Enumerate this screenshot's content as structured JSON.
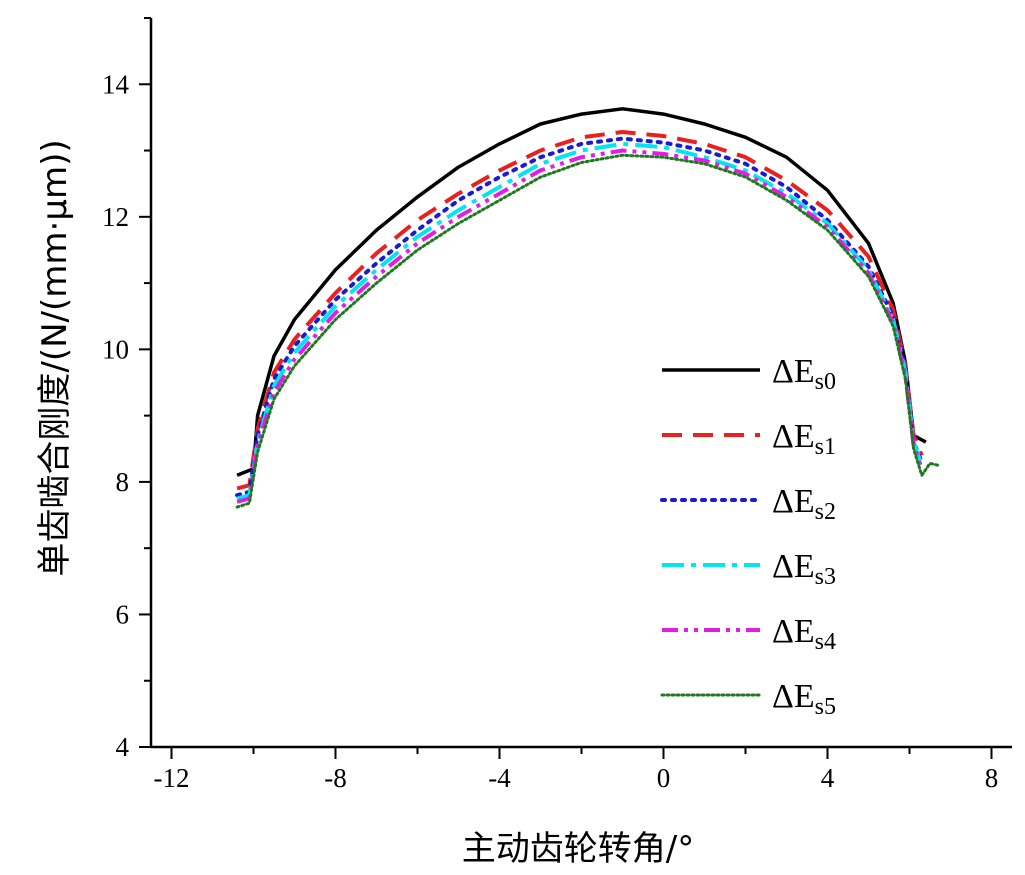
{
  "chart_data": {
    "type": "line",
    "title": "",
    "xlabel": "主动齿轮转角/°",
    "ylabel": "单齿啮合刚度/(N/(mm·μm))",
    "xlim": [
      -12.5,
      8.5
    ],
    "ylim": [
      4,
      15
    ],
    "xticks": [
      -12,
      -8,
      -4,
      0,
      4,
      8
    ],
    "yticks": [
      4,
      6,
      8,
      10,
      12,
      14
    ],
    "grid": false,
    "legend_position": "right",
    "series": [
      {
        "name": "ΔEs0",
        "name_main": "ΔE",
        "name_sub": "s0",
        "color": "#000000",
        "dash": "solid",
        "points": [
          [
            -10.4,
            8.1
          ],
          [
            -10.0,
            8.2
          ],
          [
            -9.9,
            9.0
          ],
          [
            -9.5,
            9.9
          ],
          [
            -9.0,
            10.45
          ],
          [
            -8.0,
            11.2
          ],
          [
            -7.0,
            11.8
          ],
          [
            -6.0,
            12.3
          ],
          [
            -5.0,
            12.75
          ],
          [
            -4.0,
            13.1
          ],
          [
            -3.0,
            13.4
          ],
          [
            -2.0,
            13.55
          ],
          [
            -1.0,
            13.63
          ],
          [
            0.0,
            13.55
          ],
          [
            1.0,
            13.4
          ],
          [
            2.0,
            13.2
          ],
          [
            3.0,
            12.9
          ],
          [
            4.0,
            12.4
          ],
          [
            5.0,
            11.6
          ],
          [
            5.6,
            10.7
          ],
          [
            5.9,
            9.8
          ],
          [
            6.1,
            8.7
          ],
          [
            6.4,
            8.6
          ]
        ]
      },
      {
        "name": "ΔEs1",
        "name_main": "ΔE",
        "name_sub": "s1",
        "color": "#e8201e",
        "dash": "long-dash",
        "points": [
          [
            -10.4,
            7.9
          ],
          [
            -10.1,
            7.95
          ],
          [
            -9.9,
            8.8
          ],
          [
            -9.5,
            9.65
          ],
          [
            -9.0,
            10.15
          ],
          [
            -8.0,
            10.85
          ],
          [
            -7.0,
            11.45
          ],
          [
            -6.0,
            11.95
          ],
          [
            -5.0,
            12.35
          ],
          [
            -4.0,
            12.7
          ],
          [
            -3.0,
            13.0
          ],
          [
            -2.0,
            13.2
          ],
          [
            -1.0,
            13.28
          ],
          [
            0.0,
            13.22
          ],
          [
            1.0,
            13.1
          ],
          [
            2.0,
            12.9
          ],
          [
            3.0,
            12.55
          ],
          [
            4.0,
            12.1
          ],
          [
            5.0,
            11.4
          ],
          [
            5.6,
            10.6
          ],
          [
            5.9,
            9.75
          ],
          [
            6.1,
            8.7
          ],
          [
            6.3,
            8.4
          ]
        ]
      },
      {
        "name": "ΔEs2",
        "name_main": "ΔE",
        "name_sub": "s2",
        "color": "#1a1ad0",
        "dash": "dotted",
        "points": [
          [
            -10.4,
            7.8
          ],
          [
            -10.1,
            7.85
          ],
          [
            -9.9,
            8.7
          ],
          [
            -9.5,
            9.55
          ],
          [
            -9.0,
            10.05
          ],
          [
            -8.0,
            10.75
          ],
          [
            -7.0,
            11.3
          ],
          [
            -6.0,
            11.8
          ],
          [
            -5.0,
            12.25
          ],
          [
            -4.0,
            12.6
          ],
          [
            -3.0,
            12.9
          ],
          [
            -2.0,
            13.1
          ],
          [
            -1.0,
            13.18
          ],
          [
            0.0,
            13.12
          ],
          [
            1.0,
            13.0
          ],
          [
            2.0,
            12.8
          ],
          [
            3.0,
            12.45
          ],
          [
            4.0,
            11.95
          ],
          [
            5.0,
            11.25
          ],
          [
            5.6,
            10.5
          ],
          [
            5.9,
            9.7
          ],
          [
            6.1,
            8.6
          ],
          [
            6.3,
            8.3
          ]
        ]
      },
      {
        "name": "ΔEs3",
        "name_main": "ΔE",
        "name_sub": "s3",
        "color": "#00e5ee",
        "dash": "dash-dot",
        "points": [
          [
            -10.4,
            7.75
          ],
          [
            -10.1,
            7.8
          ],
          [
            -9.9,
            8.6
          ],
          [
            -9.5,
            9.45
          ],
          [
            -9.0,
            9.95
          ],
          [
            -8.0,
            10.65
          ],
          [
            -7.0,
            11.2
          ],
          [
            -6.0,
            11.7
          ],
          [
            -5.0,
            12.1
          ],
          [
            -4.0,
            12.45
          ],
          [
            -3.0,
            12.8
          ],
          [
            -2.0,
            13.0
          ],
          [
            -1.0,
            13.1
          ],
          [
            0.0,
            13.05
          ],
          [
            1.0,
            12.9
          ],
          [
            2.0,
            12.7
          ],
          [
            3.0,
            12.35
          ],
          [
            4.0,
            11.9
          ],
          [
            5.0,
            11.2
          ],
          [
            5.6,
            10.45
          ],
          [
            5.9,
            9.65
          ],
          [
            6.1,
            8.6
          ],
          [
            6.3,
            8.25
          ]
        ]
      },
      {
        "name": "ΔEs4",
        "name_main": "ΔE",
        "name_sub": "s4",
        "color": "#e21ee2",
        "dash": "dash-dot-dot",
        "points": [
          [
            -10.4,
            7.7
          ],
          [
            -10.1,
            7.75
          ],
          [
            -9.9,
            8.55
          ],
          [
            -9.5,
            9.35
          ],
          [
            -9.0,
            9.85
          ],
          [
            -8.0,
            10.55
          ],
          [
            -7.0,
            11.1
          ],
          [
            -6.0,
            11.6
          ],
          [
            -5.0,
            12.0
          ],
          [
            -4.0,
            12.35
          ],
          [
            -3.0,
            12.7
          ],
          [
            -2.0,
            12.9
          ],
          [
            -1.0,
            13.0
          ],
          [
            0.0,
            12.95
          ],
          [
            1.0,
            12.85
          ],
          [
            2.0,
            12.65
          ],
          [
            3.0,
            12.3
          ],
          [
            4.0,
            11.85
          ],
          [
            5.0,
            11.15
          ],
          [
            5.6,
            10.4
          ],
          [
            5.9,
            9.6
          ],
          [
            6.1,
            8.55
          ],
          [
            6.3,
            8.2
          ]
        ]
      },
      {
        "name": "ΔEs5",
        "name_main": "ΔE",
        "name_sub": "s5",
        "color": "#1f7a1f",
        "dash": "short-dot",
        "points": [
          [
            -10.4,
            7.62
          ],
          [
            -10.1,
            7.68
          ],
          [
            -9.9,
            8.45
          ],
          [
            -9.5,
            9.25
          ],
          [
            -9.0,
            9.75
          ],
          [
            -8.0,
            10.45
          ],
          [
            -7.0,
            11.0
          ],
          [
            -6.0,
            11.5
          ],
          [
            -5.0,
            11.9
          ],
          [
            -4.0,
            12.25
          ],
          [
            -3.0,
            12.6
          ],
          [
            -2.0,
            12.82
          ],
          [
            -1.0,
            12.93
          ],
          [
            0.0,
            12.9
          ],
          [
            1.0,
            12.8
          ],
          [
            2.0,
            12.6
          ],
          [
            3.0,
            12.25
          ],
          [
            4.0,
            11.8
          ],
          [
            5.0,
            11.1
          ],
          [
            5.6,
            10.35
          ],
          [
            5.9,
            9.55
          ],
          [
            6.1,
            8.5
          ],
          [
            6.3,
            8.1
          ],
          [
            6.5,
            8.28
          ],
          [
            6.7,
            8.25
          ]
        ]
      }
    ]
  }
}
